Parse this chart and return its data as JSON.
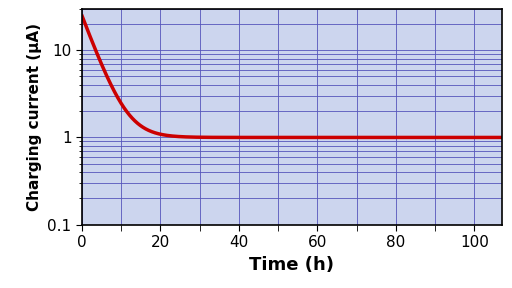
{
  "xlabel": "Time (h)",
  "ylabel": "Charging current (μA)",
  "xlim": [
    0,
    107
  ],
  "ylim": [
    0.1,
    30
  ],
  "xticks": [
    0,
    20,
    40,
    60,
    80,
    100
  ],
  "curve_color": "#cc0000",
  "curve_linewidth": 2.5,
  "grid_color": "#5555bb",
  "grid_linewidth": 0.6,
  "bg_color": "#ccd5ee",
  "asymptote": 1.0,
  "decay_amplitude": 24.0,
  "decay_rate": 0.28,
  "xlabel_fontsize": 13,
  "ylabel_fontsize": 11,
  "tick_fontsize": 11,
  "axis_linewidth": 1.2,
  "figsize": [
    5.12,
    2.88
  ],
  "dpi": 100
}
